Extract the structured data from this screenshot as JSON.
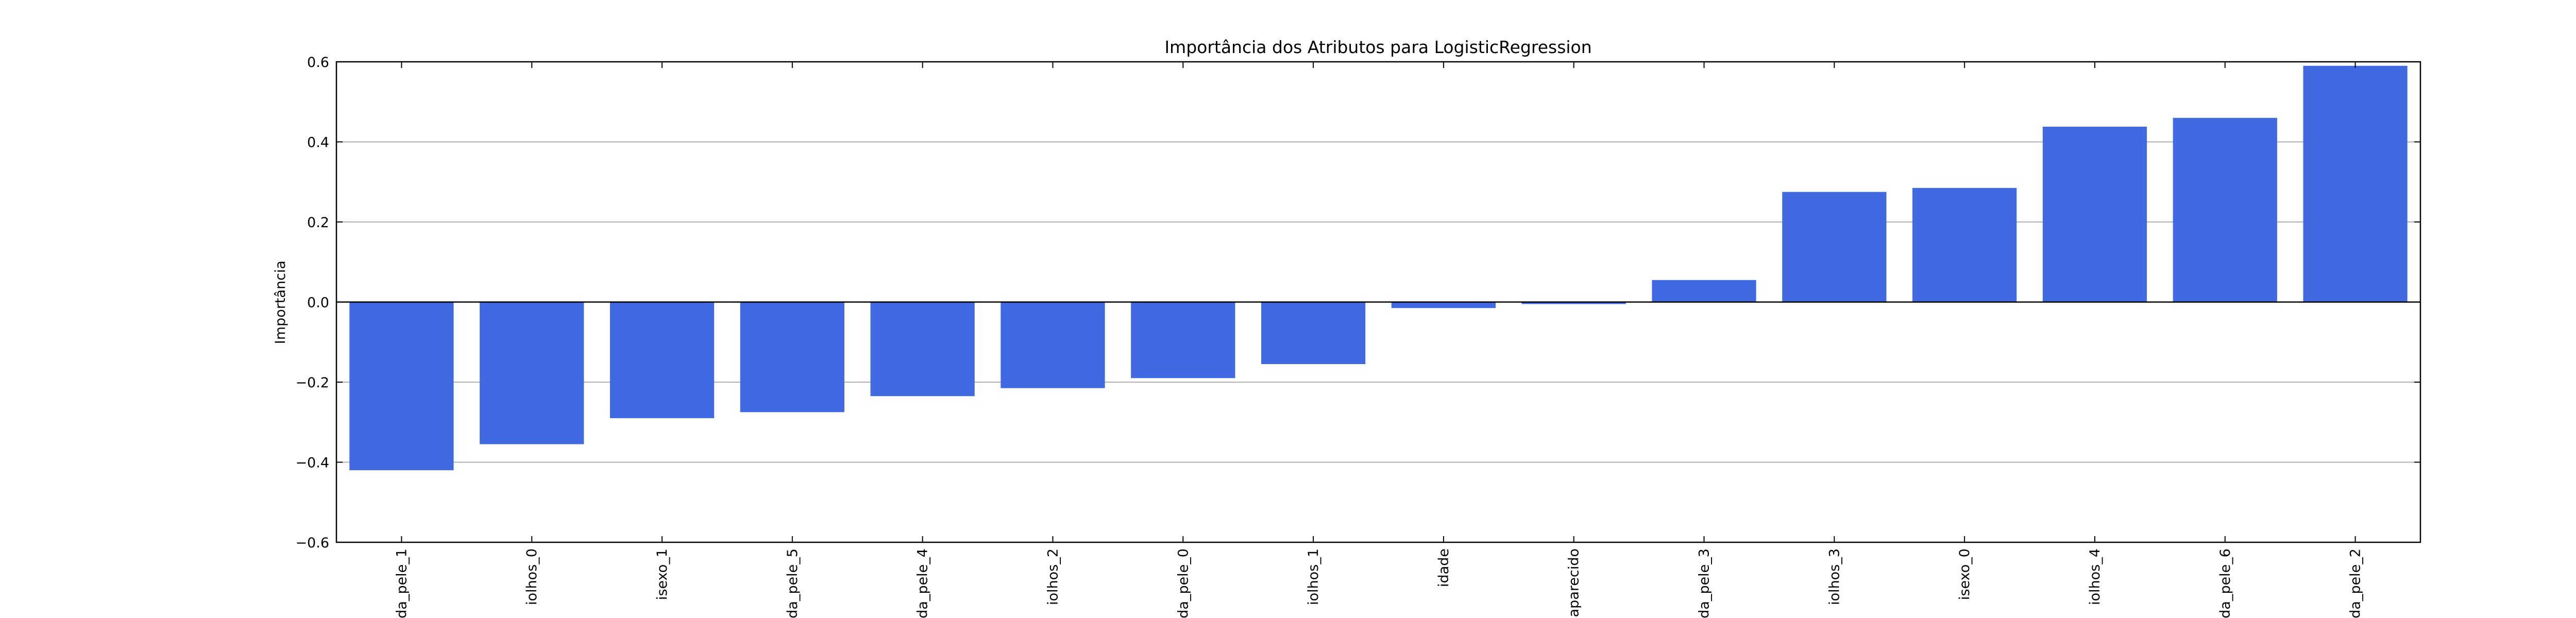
{
  "chart_data": {
    "type": "bar",
    "title": "Importância dos Atributos para LogisticRegression",
    "xlabel": "",
    "ylabel": "Importância",
    "ylim": [
      -0.6,
      0.6
    ],
    "yticks": [
      "−0.6",
      "−0.4",
      "−0.2",
      "0.0",
      "0.2",
      "0.4",
      "0.6"
    ],
    "ytick_values": [
      -0.6,
      -0.4,
      -0.2,
      0.0,
      0.2,
      0.4,
      0.6
    ],
    "grid": true,
    "bar_color": "#4169e1",
    "categories": [
      "da_pele_1",
      "iolhos_0",
      "isexo_1",
      "da_pele_5",
      "da_pele_4",
      "iolhos_2",
      "da_pele_0",
      "iolhos_1",
      "idade",
      "aparecido",
      "da_pele_3",
      "iolhos_3",
      "isexo_0",
      "iolhos_4",
      "da_pele_6",
      "da_pele_2"
    ],
    "values": [
      -0.42,
      -0.355,
      -0.29,
      -0.275,
      -0.235,
      -0.215,
      -0.19,
      -0.155,
      -0.015,
      -0.005,
      0.055,
      0.275,
      0.285,
      0.438,
      0.46,
      0.59
    ]
  }
}
